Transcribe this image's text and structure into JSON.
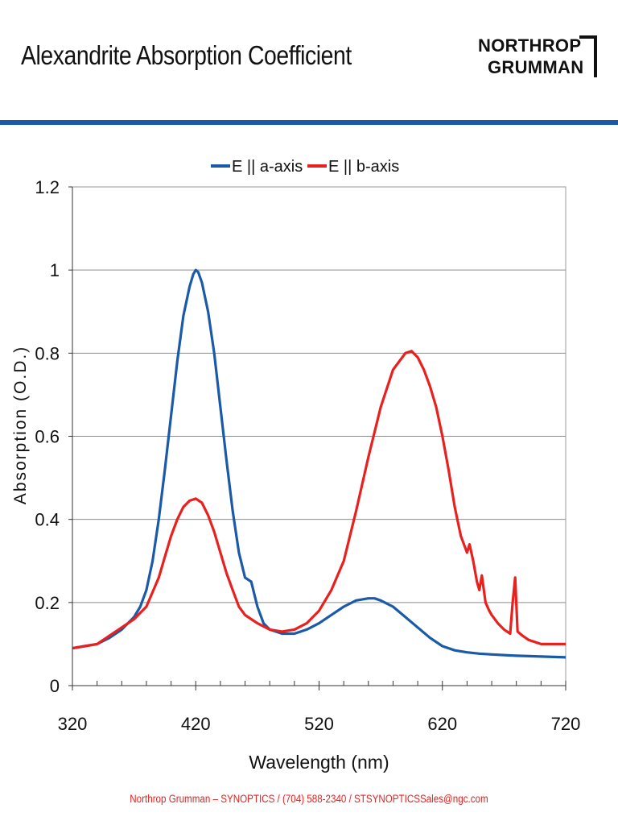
{
  "header": {
    "title": "Alexandrite Absorption Coefficient",
    "logo_line1": "NORTHROP",
    "logo_line2": "GRUMMAN",
    "rule_color": "#1a5aa8"
  },
  "footer": {
    "text": "Northrop Grumman – SYNOPTICS   /   (704) 588-2340   /   STSYNOPTICSSales@ngc.com",
    "color": "#e8201e"
  },
  "chart_data": {
    "type": "line",
    "xlabel": "Wavelength (nm)",
    "ylabel": "Absorption (O.D.)",
    "xlim": [
      320,
      720
    ],
    "ylim": [
      0,
      1.2
    ],
    "x_ticks": [
      320,
      420,
      520,
      620,
      720
    ],
    "y_ticks": [
      0,
      0.2,
      0.4,
      0.6,
      0.8,
      1,
      1.2
    ],
    "grid": "horizontal",
    "legend_position": "top-center",
    "series": [
      {
        "name": "E || a-axis",
        "color": "#1a5aa8",
        "x": [
          320,
          330,
          340,
          350,
          360,
          370,
          375,
          380,
          385,
          390,
          395,
          400,
          405,
          410,
          415,
          418,
          420,
          422,
          425,
          430,
          435,
          440,
          445,
          450,
          455,
          460,
          465,
          470,
          475,
          480,
          490,
          500,
          510,
          520,
          530,
          540,
          550,
          560,
          565,
          570,
          580,
          590,
          600,
          610,
          620,
          630,
          640,
          650,
          660,
          680,
          700,
          720
        ],
        "y": [
          0.09,
          0.095,
          0.1,
          0.115,
          0.135,
          0.165,
          0.19,
          0.23,
          0.3,
          0.4,
          0.52,
          0.65,
          0.78,
          0.89,
          0.96,
          0.99,
          1.0,
          0.995,
          0.97,
          0.9,
          0.8,
          0.67,
          0.54,
          0.42,
          0.32,
          0.26,
          0.25,
          0.19,
          0.15,
          0.135,
          0.125,
          0.125,
          0.135,
          0.15,
          0.17,
          0.19,
          0.205,
          0.21,
          0.21,
          0.205,
          0.19,
          0.165,
          0.14,
          0.115,
          0.095,
          0.085,
          0.08,
          0.077,
          0.075,
          0.072,
          0.07,
          0.068
        ]
      },
      {
        "name": "E || b-axis",
        "color": "#e8201e",
        "x": [
          320,
          330,
          340,
          350,
          360,
          370,
          380,
          390,
          395,
          400,
          405,
          410,
          415,
          420,
          425,
          430,
          435,
          440,
          445,
          450,
          455,
          460,
          465,
          470,
          480,
          490,
          500,
          510,
          520,
          530,
          540,
          550,
          560,
          570,
          580,
          590,
          595,
          600,
          605,
          610,
          615,
          620,
          625,
          630,
          635,
          640,
          642,
          645,
          648,
          650,
          652,
          655,
          658,
          660,
          665,
          670,
          675,
          677,
          679,
          681,
          685,
          690,
          700,
          710,
          720
        ],
        "y": [
          0.09,
          0.095,
          0.1,
          0.12,
          0.14,
          0.16,
          0.19,
          0.26,
          0.31,
          0.36,
          0.4,
          0.43,
          0.445,
          0.45,
          0.44,
          0.41,
          0.37,
          0.32,
          0.27,
          0.23,
          0.19,
          0.17,
          0.16,
          0.15,
          0.135,
          0.13,
          0.135,
          0.15,
          0.18,
          0.23,
          0.3,
          0.42,
          0.55,
          0.67,
          0.76,
          0.8,
          0.805,
          0.79,
          0.76,
          0.72,
          0.67,
          0.6,
          0.52,
          0.43,
          0.36,
          0.32,
          0.34,
          0.3,
          0.25,
          0.23,
          0.265,
          0.2,
          0.18,
          0.17,
          0.15,
          0.135,
          0.125,
          0.2,
          0.26,
          0.13,
          0.12,
          0.11,
          0.1,
          0.1,
          0.1
        ]
      }
    ]
  }
}
